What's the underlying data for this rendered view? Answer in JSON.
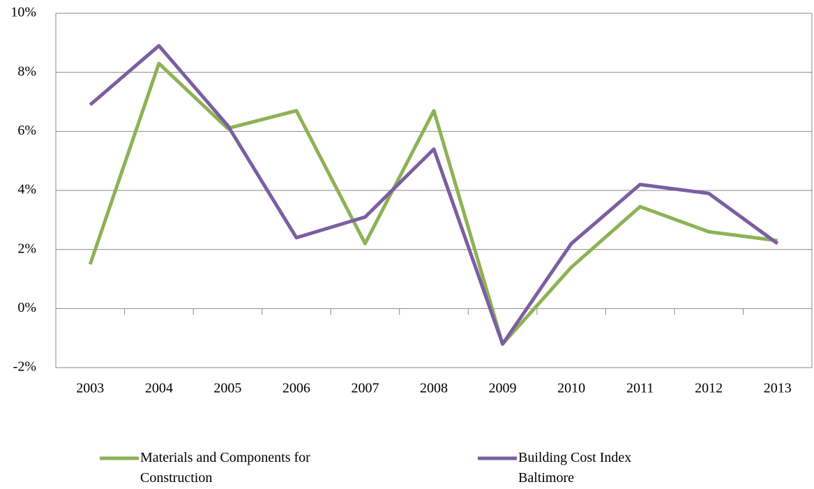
{
  "chart_data": {
    "type": "line",
    "categories": [
      "2003",
      "2004",
      "2005",
      "2006",
      "2007",
      "2008",
      "2009",
      "2010",
      "2011",
      "2012",
      "2013"
    ],
    "series": [
      {
        "name": "Materials and Components for Construction",
        "color": "#8db255",
        "values": [
          1.5,
          8.3,
          6.1,
          6.7,
          2.2,
          6.7,
          -1.2,
          1.4,
          3.45,
          2.6,
          2.3
        ]
      },
      {
        "name": "Building Cost Index Baltimore",
        "color": "#7b5ea1",
        "values": [
          6.9,
          8.9,
          6.2,
          2.4,
          3.1,
          5.4,
          -1.2,
          2.2,
          4.2,
          3.9,
          2.2
        ]
      }
    ],
    "ylim": [
      -2,
      10
    ],
    "yticks": [
      {
        "value": -2,
        "label": "-2%"
      },
      {
        "value": 0,
        "label": "0%"
      },
      {
        "value": 2,
        "label": "2%"
      },
      {
        "value": 4,
        "label": "4%"
      },
      {
        "value": 6,
        "label": "6%"
      },
      {
        "value": 8,
        "label": "8%"
      },
      {
        "value": 10,
        "label": "10%"
      }
    ],
    "grid": true
  }
}
